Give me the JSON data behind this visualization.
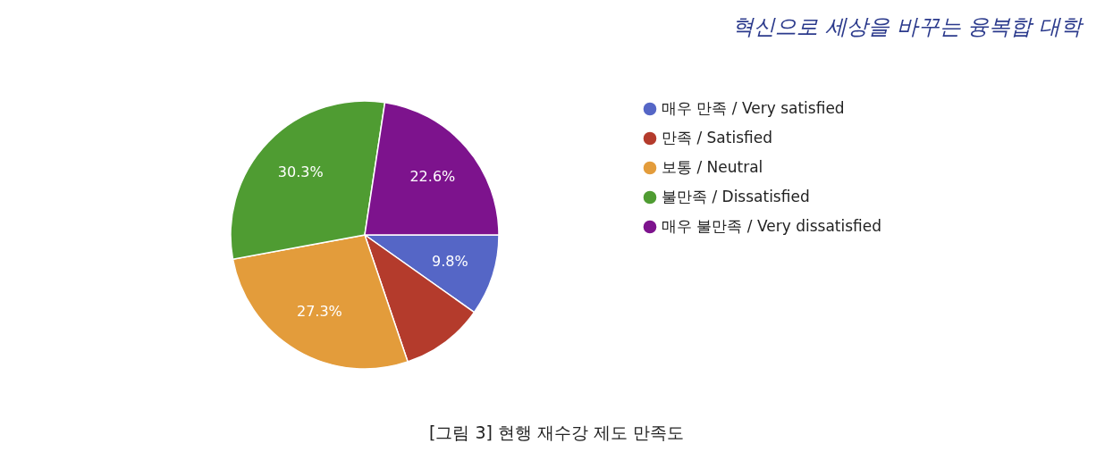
{
  "chart_data": {
    "type": "pie",
    "categories": [
      "매우 만족 / Very satisfied",
      "만족 / Satisfied",
      "보통 / Neutral",
      "불만족 / Dissatisfied",
      "매우 불만족 / Very dissatisfied"
    ],
    "values": [
      9.8,
      10.0,
      27.3,
      30.3,
      22.6
    ],
    "value_labels": [
      "9.8%",
      null,
      "27.3%",
      "30.3%",
      "22.6%"
    ],
    "colors": [
      "#5566c6",
      "#b43b2c",
      "#e39c3b",
      "#4f9c32",
      "#7d138d"
    ],
    "legend": "right",
    "annotations": [
      "[그림 3] 현행 재수강 제도 만족도",
      "혁신으로 세상을 바꾸는 융복합 대학"
    ]
  }
}
